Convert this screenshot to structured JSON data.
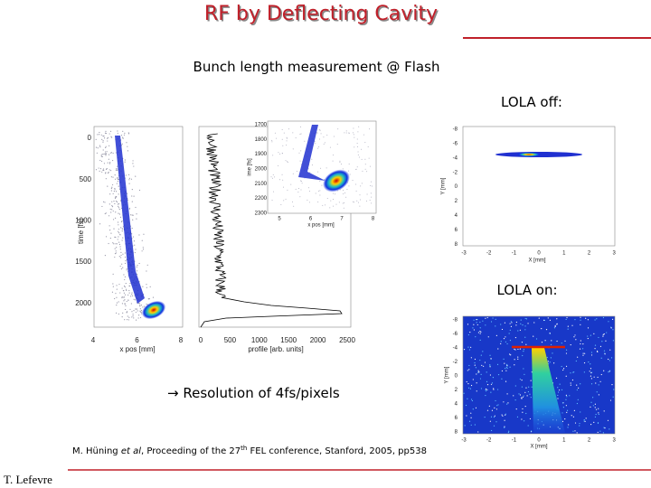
{
  "title": "RF by Deflecting Cavity",
  "subtitle": "Bunch length measurement @ Flash",
  "lola_off_label": "LOLA off:",
  "lola_on_label": "LOLA on:",
  "resolution_note": "→ Resolution of 4fs/pixels",
  "citation": {
    "authors": "M. Hüning ",
    "et_al": "et al",
    "before_sup": ", Proceeding of the 27",
    "sup": "th",
    "after_sup": " FEL conference, Stanford, 2005, pp538"
  },
  "footer": "T. Lefevre",
  "figures": {
    "streak": {
      "xlabel": "x pos [mm]",
      "ylabel": "time [fs]",
      "xticks": [
        4,
        6,
        8
      ],
      "yticks": [
        0,
        500,
        1000,
        1500,
        2000
      ]
    },
    "profile": {
      "xlabel": "profile [arb. units]",
      "xticks": [
        0,
        500,
        1000,
        1500,
        2000,
        2500
      ]
    },
    "inset": {
      "xlabel": "x pos [mm]",
      "ylabel": "ime [fs]",
      "xticks": [
        5,
        6,
        7,
        8
      ],
      "yticks": [
        1700,
        1800,
        1900,
        2000,
        2100,
        2200,
        2300
      ]
    },
    "lola_off": {
      "xlabel": "X [mm]",
      "ylabel": "Y [mm]",
      "xticks": [
        -3,
        -2,
        -1,
        0,
        1,
        2,
        3
      ],
      "yticks": [
        -8,
        -6,
        -4,
        -2,
        0,
        2,
        4,
        6,
        8
      ]
    },
    "lola_on": {
      "xlabel": "X [mm]",
      "ylabel": "Y [mm]",
      "xticks": [
        -3,
        -2,
        -1,
        0,
        1,
        2,
        3
      ],
      "yticks": [
        -8,
        -6,
        -4,
        -2,
        0,
        2,
        4,
        6,
        8
      ]
    }
  }
}
